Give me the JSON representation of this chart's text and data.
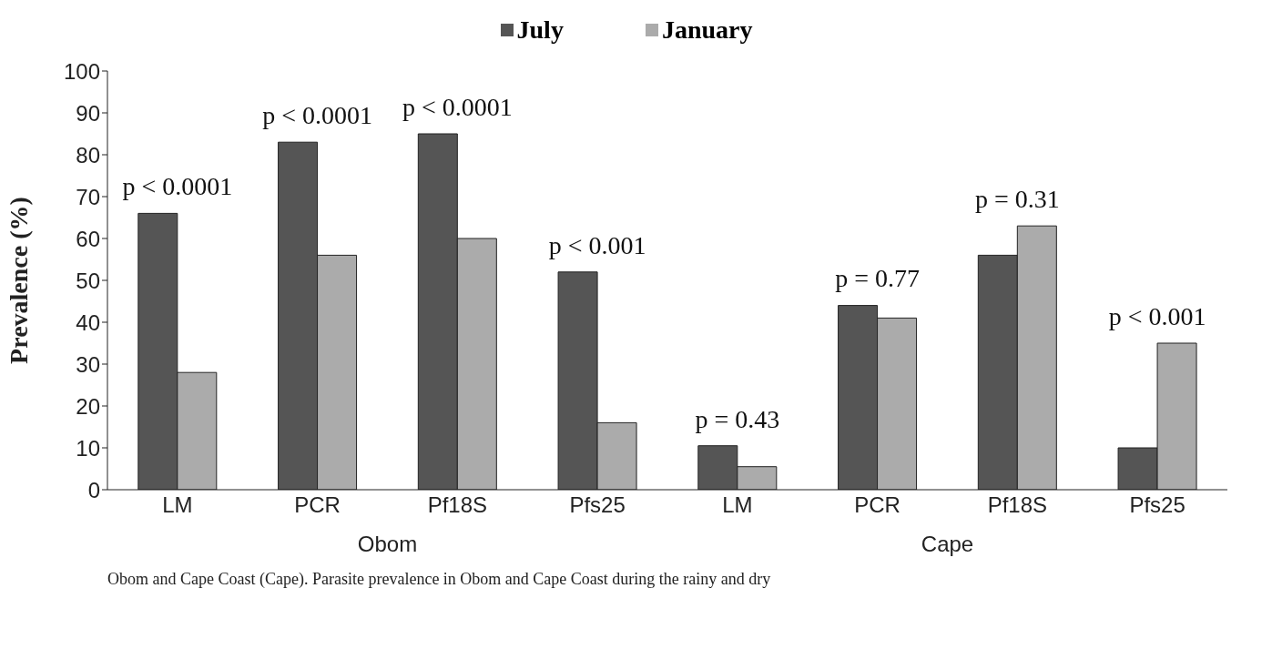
{
  "chart_data": {
    "type": "bar",
    "ylabel": "Prevalence (%)",
    "categories": [
      "LM",
      "PCR",
      "Pf18S",
      "Pfs25",
      "LM",
      "PCR",
      "Pf18S",
      "Pfs25"
    ],
    "series": [
      {
        "name": "July",
        "color": "#555555",
        "values": [
          66,
          83,
          85,
          52,
          10.5,
          44,
          56,
          10
        ]
      },
      {
        "name": "January",
        "color": "#ababab",
        "values": [
          28,
          56,
          60,
          16,
          5.5,
          41,
          63,
          35
        ]
      }
    ],
    "ylim": [
      0,
      100
    ],
    "yticks": [
      0,
      10,
      20,
      30,
      40,
      50,
      60,
      70,
      80,
      90,
      100
    ],
    "legend": "top",
    "annotations": [
      "p < 0.0001",
      "p < 0.0001",
      "p < 0.0001",
      "p < 0.001",
      "p = 0.43",
      "p = 0.77",
      "p = 0.31",
      "p < 0.001",
      "Obom",
      "Cape",
      "Obom and Cape Coast (Cape). Parasite prevalence in Obom and Cape Coast during the rainy and dry"
    ]
  }
}
